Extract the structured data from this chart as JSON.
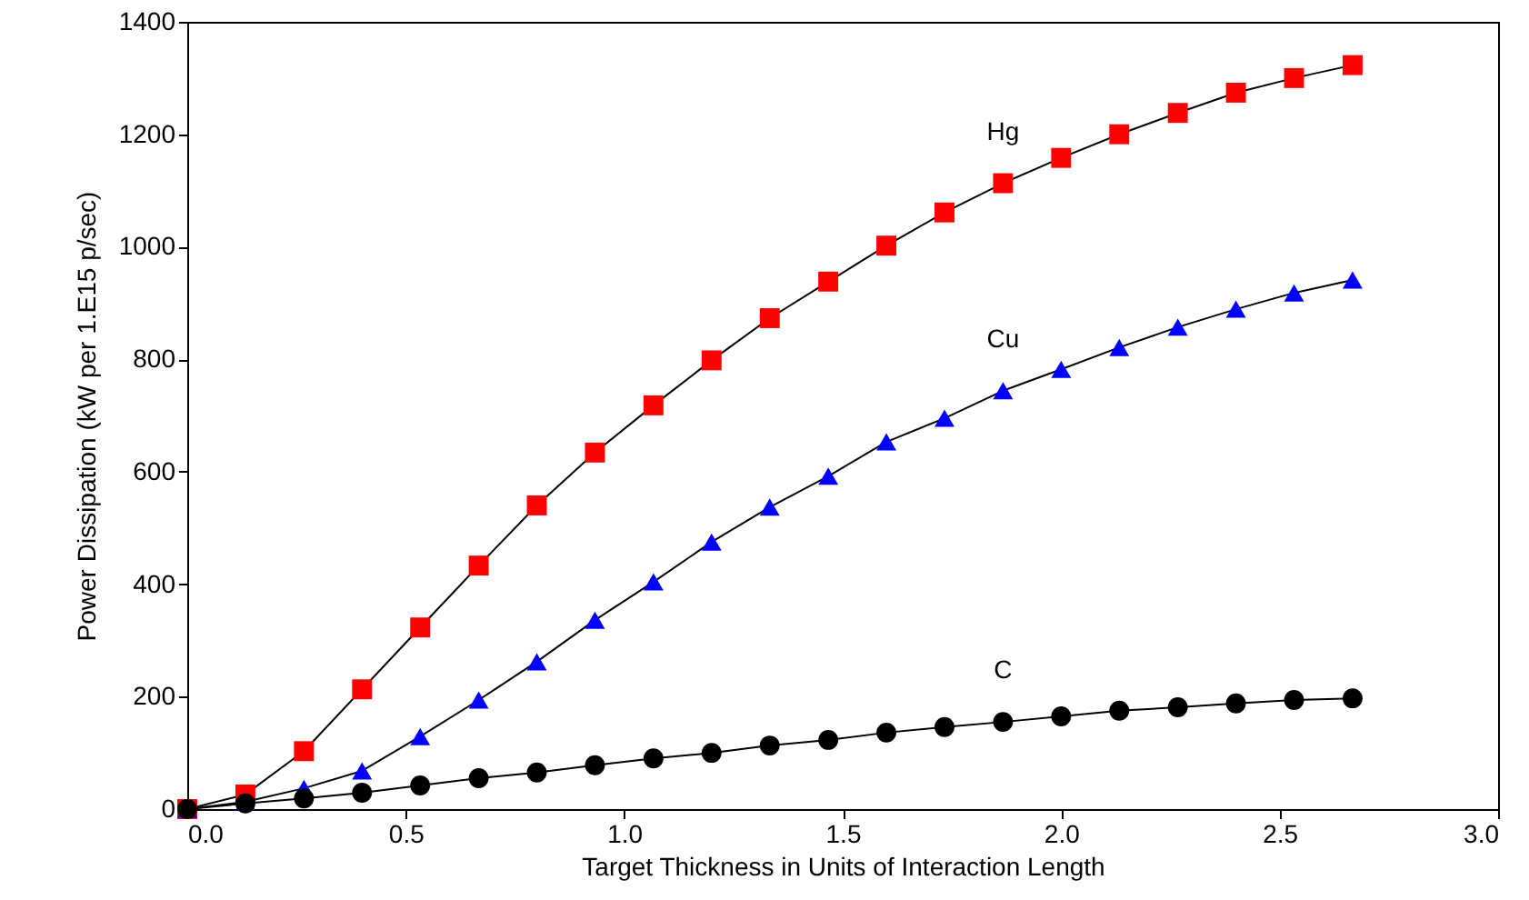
{
  "chart_data": {
    "type": "line",
    "xlabel": "Target Thickness in Units of Interaction Length",
    "ylabel": "Power Dissipation (kW per 1.E15 p/sec)",
    "x": [
      0,
      0.133,
      0.267,
      0.4,
      0.533,
      0.667,
      0.8,
      0.933,
      1.067,
      1.2,
      1.333,
      1.467,
      1.6,
      1.733,
      1.867,
      2.0,
      2.133,
      2.267,
      2.4,
      2.533,
      2.667
    ],
    "series": [
      {
        "name": "Hg",
        "color": "#ff0000",
        "marker": "square",
        "values": [
          0,
          26,
          103,
          213,
          323,
          433,
          540,
          634,
          718,
          798,
          873,
          938,
          1002,
          1061,
          1113,
          1158,
          1200,
          1238,
          1274,
          1300,
          1323
        ]
      },
      {
        "name": "Cu",
        "color": "#0000ff",
        "marker": "triangle",
        "values": [
          0,
          13,
          37,
          68,
          129,
          194,
          262,
          336,
          404,
          475,
          537,
          592,
          653,
          695,
          744,
          782,
          821,
          857,
          889,
          918,
          941
        ]
      },
      {
        "name": "C",
        "color": "#000000",
        "marker": "circle",
        "values": [
          0,
          10,
          19,
          29,
          42,
          55,
          65,
          78,
          90,
          100,
          113,
          123,
          136,
          146,
          155,
          165,
          175,
          181,
          188,
          194,
          197
        ]
      }
    ],
    "xlim": [
      0,
      3
    ],
    "xticks": [
      {
        "value": 0,
        "label": "0.0"
      },
      {
        "value": 0.5,
        "label": "0.5"
      },
      {
        "value": 1,
        "label": "1.0"
      },
      {
        "value": 1.5,
        "label": "1.5"
      },
      {
        "value": 2,
        "label": "2.0"
      },
      {
        "value": 2.5,
        "label": "2.5"
      },
      {
        "value": 3,
        "label": "3.0"
      }
    ],
    "ylim": [
      0,
      1400
    ],
    "yticks": [
      0,
      200,
      400,
      600,
      800,
      1000,
      1200,
      1400
    ],
    "line_style": "solid"
  }
}
